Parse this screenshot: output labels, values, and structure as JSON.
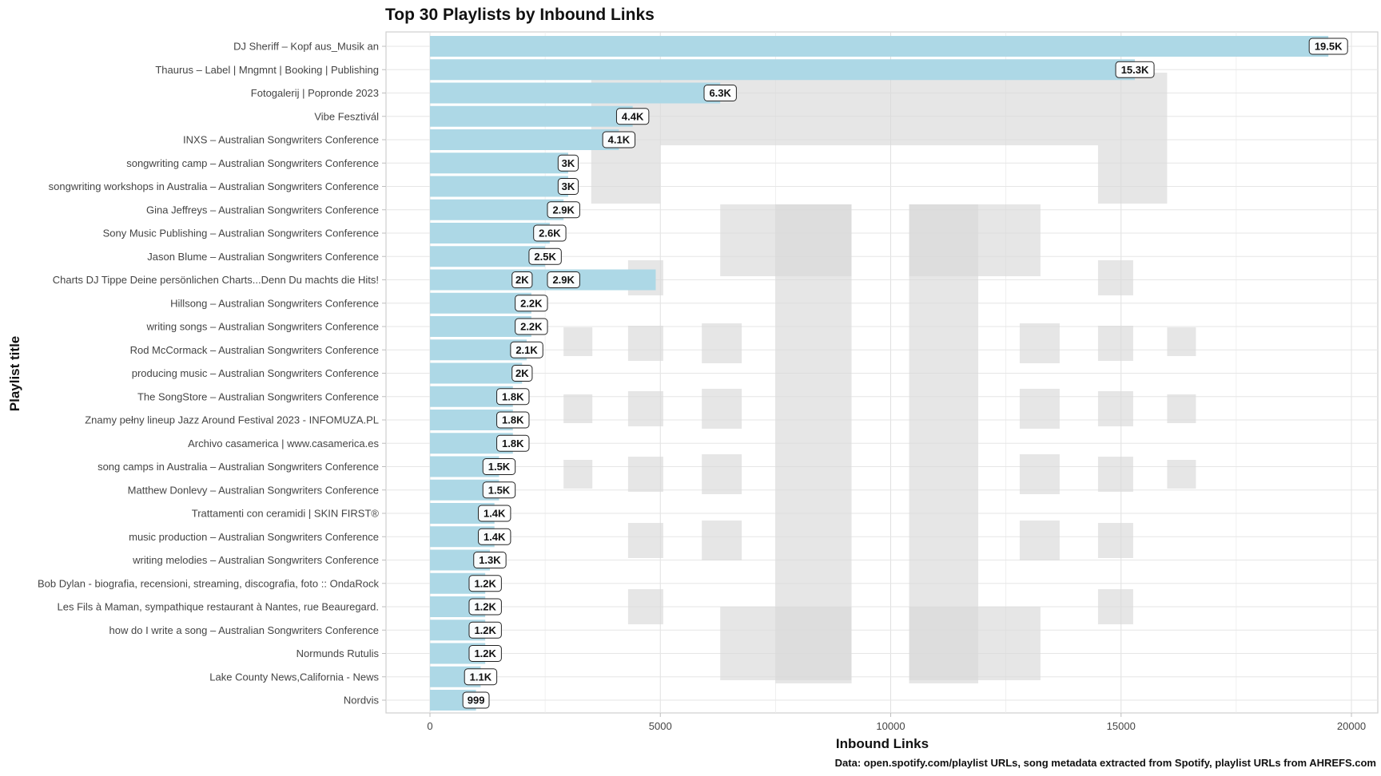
{
  "chart_data": {
    "type": "bar",
    "orientation": "horizontal",
    "title": "Top 30 Playlists by Inbound Links",
    "xlabel": "Inbound Links",
    "ylabel": "Playlist title",
    "caption": "Data: open.spotify.com/playlist URLs, song metadata extracted from Spotify, playlist URLs from AHREFS.com",
    "xlim": [
      -1000,
      20500
    ],
    "xticks": [
      0,
      5000,
      10000,
      15000,
      20000
    ],
    "xtick_labels": [
      "0",
      "5000",
      "10000",
      "15000",
      "20000"
    ],
    "grid": true,
    "bar_color": "#add8e6",
    "categories": [
      "DJ Sheriff – Kopf aus_Musik an",
      "Thaurus – Label | Mngmnt | Booking | Publishing",
      "Fotogalerij | Popronde 2023",
      "Vibe Fesztivál",
      "INXS – Australian Songwriters Conference",
      "songwriting camp – Australian Songwriters Conference",
      "songwriting workshops in Australia – Australian Songwriters Conference",
      "Gina Jeffreys – Australian Songwriters Conference",
      "Sony Music Publishing – Australian Songwriters Conference",
      "Jason Blume – Australian Songwriters Conference",
      "Charts DJ Tippe Deine persönlichen Charts...Denn Du machts die Hits!",
      "Hillsong – Australian Songwriters Conference",
      "writing songs – Australian Songwriters Conference",
      "Rod McCormack – Australian Songwriters Conference",
      "producing music – Australian Songwriters Conference",
      "The SongStore – Australian Songwriters Conference",
      "Znamy pełny lineup Jazz Around Festival 2023 - INFOMUZA.PL",
      "Archivo casamerica | www.casamerica.es",
      "song camps in Australia – Australian Songwriters Conference",
      "Matthew Donlevy – Australian Songwriters Conference",
      "Trattamenti con ceramidi | SKIN FIRST®",
      "music production – Australian Songwriters Conference",
      "writing melodies – Australian Songwriters Conference",
      "Bob Dylan - biografia, recensioni, streaming, discografia, foto :: OndaRock",
      "Les Fils à Maman, sympathique restaurant à Nantes, rue Beauregard.",
      "how do I write a song – Australian Songwriters Conference",
      "Normunds Rutulis",
      "Lake County News,California - News",
      "Nordvis"
    ],
    "bars": [
      {
        "row": 0,
        "segments": [
          {
            "value": 19500,
            "label": "19.5K"
          }
        ]
      },
      {
        "row": 1,
        "segments": [
          {
            "value": 15300,
            "label": "15.3K"
          }
        ]
      },
      {
        "row": 2,
        "segments": [
          {
            "value": 6300,
            "label": "6.3K"
          }
        ]
      },
      {
        "row": 3,
        "segments": [
          {
            "value": 4400,
            "label": "4.4K"
          }
        ]
      },
      {
        "row": 4,
        "segments": [
          {
            "value": 4100,
            "label": "4.1K"
          }
        ]
      },
      {
        "row": 5,
        "segments": [
          {
            "value": 3000,
            "label": "3K"
          }
        ]
      },
      {
        "row": 6,
        "segments": [
          {
            "value": 3000,
            "label": "3K"
          }
        ]
      },
      {
        "row": 7,
        "segments": [
          {
            "value": 2900,
            "label": "2.9K"
          }
        ]
      },
      {
        "row": 8,
        "segments": [
          {
            "value": 2600,
            "label": "2.6K"
          }
        ]
      },
      {
        "row": 9,
        "segments": [
          {
            "value": 2500,
            "label": "2.5K"
          }
        ]
      },
      {
        "row": 10,
        "segments": [
          {
            "value": 2000,
            "label": "2K"
          },
          {
            "value": 2900,
            "label": "2.9K"
          }
        ]
      },
      {
        "row": 11,
        "segments": [
          {
            "value": 2200,
            "label": "2.2K"
          }
        ]
      },
      {
        "row": 12,
        "segments": [
          {
            "value": 2200,
            "label": "2.2K"
          }
        ]
      },
      {
        "row": 13,
        "segments": [
          {
            "value": 2100,
            "label": "2.1K"
          }
        ]
      },
      {
        "row": 14,
        "segments": [
          {
            "value": 2000,
            "label": "2K"
          }
        ]
      },
      {
        "row": 15,
        "segments": [
          {
            "value": 1800,
            "label": "1.8K"
          }
        ]
      },
      {
        "row": 16,
        "segments": [
          {
            "value": 1800,
            "label": "1.8K"
          }
        ]
      },
      {
        "row": 17,
        "segments": [
          {
            "value": 1800,
            "label": "1.8K"
          }
        ]
      },
      {
        "row": 18,
        "segments": [
          {
            "value": 1500,
            "label": "1.5K"
          }
        ]
      },
      {
        "row": 19,
        "segments": [
          {
            "value": 1500,
            "label": "1.5K"
          }
        ]
      },
      {
        "row": 20,
        "segments": [
          {
            "value": 1400,
            "label": "1.4K"
          }
        ]
      },
      {
        "row": 21,
        "segments": [
          {
            "value": 1400,
            "label": "1.4K"
          }
        ]
      },
      {
        "row": 22,
        "segments": [
          {
            "value": 1300,
            "label": "1.3K"
          }
        ]
      },
      {
        "row": 23,
        "segments": [
          {
            "value": 1200,
            "label": "1.2K"
          }
        ]
      },
      {
        "row": 24,
        "segments": [
          {
            "value": 1200,
            "label": "1.2K"
          }
        ]
      },
      {
        "row": 25,
        "segments": [
          {
            "value": 1200,
            "label": "1.2K"
          }
        ]
      },
      {
        "row": 26,
        "segments": [
          {
            "value": 1200,
            "label": "1.2K"
          }
        ]
      },
      {
        "row": 27,
        "segments": [
          {
            "value": 1100,
            "label": "1.1K"
          }
        ]
      },
      {
        "row": 28,
        "segments": [
          {
            "value": 999,
            "label": "999"
          }
        ]
      }
    ]
  }
}
